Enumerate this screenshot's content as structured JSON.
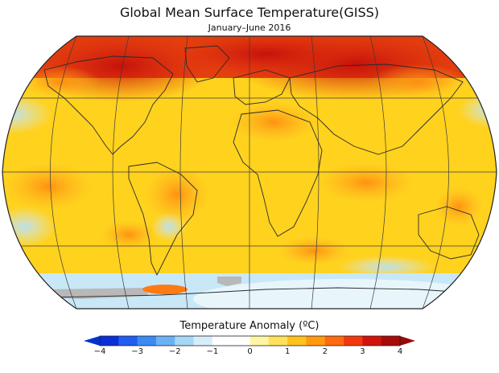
{
  "title": "Global Mean Surface Temperature(GISS)",
  "subtitle": "January–June 2016",
  "colorbar": {
    "label": "Temperature Anomaly (ºC)",
    "min": -4,
    "max": 4,
    "ticks": [
      "−4",
      "−3",
      "−2",
      "−1",
      "0",
      "1",
      "2",
      "3",
      "4"
    ],
    "colors": [
      "#0a2fd6",
      "#1f5cf0",
      "#3c8af2",
      "#6cb1f5",
      "#a6d7f7",
      "#d7eefa",
      "#ffffff",
      "#ffffff",
      "#fff5a6",
      "#ffe15a",
      "#ffc21c",
      "#ff9a10",
      "#ff6a10",
      "#f2380f",
      "#d0140c",
      "#a80c08"
    ],
    "under_color": "#0033cc",
    "over_color": "#9a0808"
  },
  "map": {
    "projection": "Robinson",
    "nodata_color": "#b8b8b8",
    "land_outline_color": "#333333"
  }
}
